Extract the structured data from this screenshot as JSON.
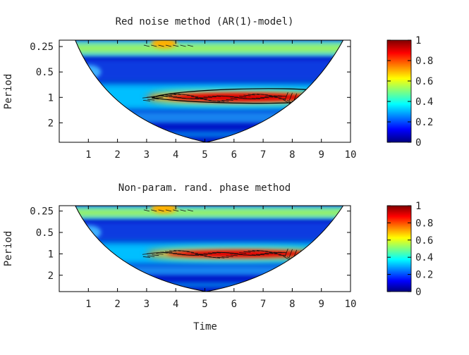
{
  "chart_data": [
    {
      "type": "heatmap",
      "title": "Red noise method (AR(1)-model)",
      "xlabel": "",
      "ylabel": "Period",
      "xlim": [
        0,
        10
      ],
      "x_ticks": [
        "1",
        "2",
        "3",
        "4",
        "5",
        "6",
        "7",
        "8",
        "9",
        "10"
      ],
      "y_ticks": [
        "0.25",
        "0.5",
        "1",
        "2"
      ],
      "y_scale": "log2",
      "colorbar": {
        "ticks": [
          "0",
          "0.2",
          "0.4",
          "0.6",
          "0.8",
          "1"
        ],
        "range": [
          0,
          1
        ],
        "colormap": "jet"
      },
      "significance_contour_x": [
        3.2,
        8.9
      ],
      "significance_period": 1
    },
    {
      "type": "heatmap",
      "title": "Non-param. rand. phase method",
      "xlabel": "Time",
      "ylabel": "Period",
      "xlim": [
        0,
        10
      ],
      "x_ticks": [
        "1",
        "2",
        "3",
        "4",
        "5",
        "6",
        "7",
        "8",
        "9",
        "10"
      ],
      "y_ticks": [
        "0.25",
        "0.5",
        "1",
        "2"
      ],
      "y_scale": "log2",
      "colorbar": {
        "ticks": [
          "0",
          "0.2",
          "0.4",
          "0.6",
          "0.8",
          "1"
        ],
        "range": [
          0,
          1
        ],
        "colormap": "jet"
      }
    }
  ]
}
